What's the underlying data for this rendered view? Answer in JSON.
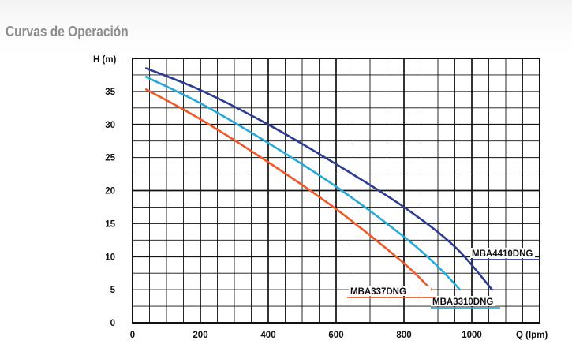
{
  "page": {
    "title": "Curvas de Operación"
  },
  "chart_data": {
    "type": "line",
    "title": "",
    "xlabel": "Q (lpm)",
    "ylabel": "H (m)",
    "xlim": [
      0,
      1200
    ],
    "ylim": [
      0,
      40
    ],
    "x_ticks": [
      0,
      200,
      400,
      600,
      800,
      1000
    ],
    "y_ticks": [
      0,
      5,
      10,
      15,
      20,
      25,
      30,
      35
    ],
    "grid": true,
    "series": [
      {
        "name": "MBA4410DNG",
        "color": "#2e3d8f",
        "label_color": "#2e3d8f",
        "x": [
          40,
          200,
          400,
          600,
          800,
          950,
          1060
        ],
        "y": [
          38.5,
          35.2,
          30.0,
          24.0,
          17.5,
          11.5,
          5.0
        ]
      },
      {
        "name": "MBA3310DNG",
        "color": "#2aa8d8",
        "label_color": "#2aa8d8",
        "x": [
          40,
          200,
          400,
          600,
          800,
          900,
          965
        ],
        "y": [
          37.2,
          33.2,
          27.2,
          20.6,
          13.0,
          8.5,
          5.0
        ]
      },
      {
        "name": "MBA337DNG",
        "color": "#ee5a2a",
        "label_color": "#ee5a2a",
        "x": [
          40,
          200,
          400,
          600,
          800,
          880
        ],
        "y": [
          35.3,
          30.8,
          24.3,
          17.2,
          9.0,
          5.0
        ]
      }
    ]
  }
}
